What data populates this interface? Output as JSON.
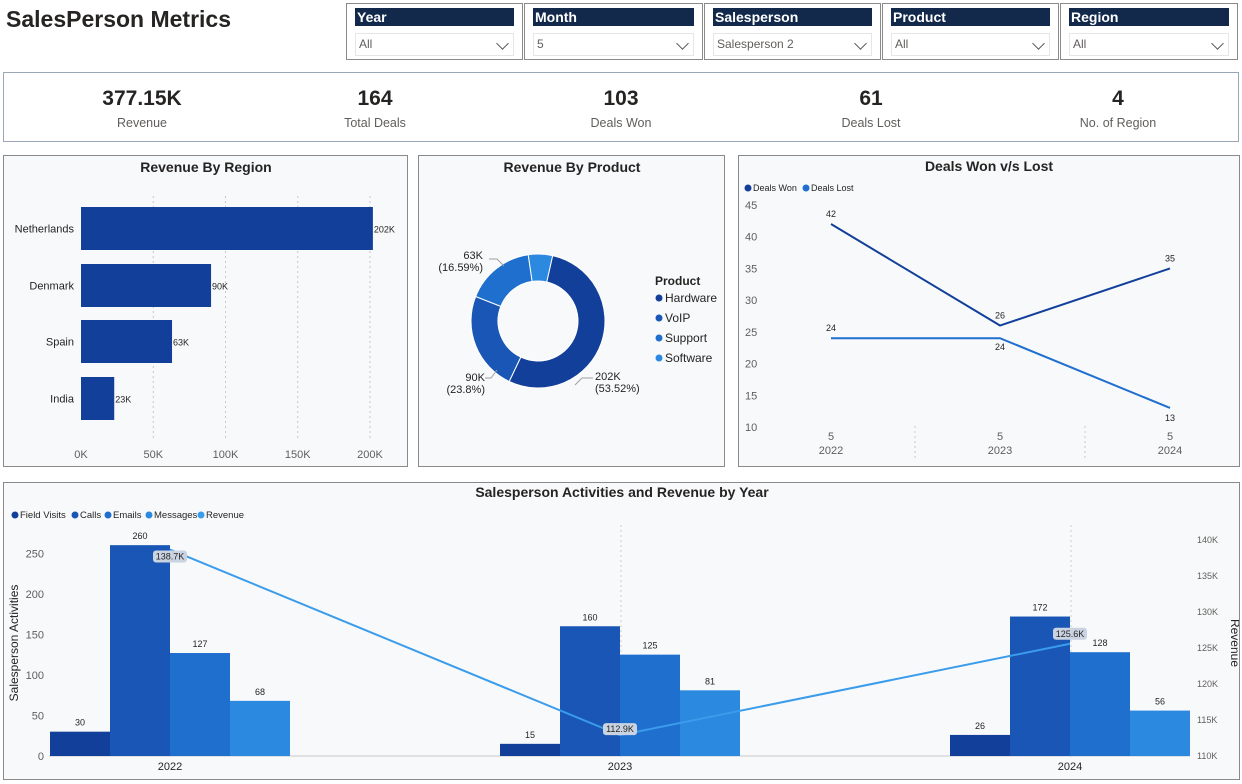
{
  "header": {
    "title": "SalesPerson Metrics"
  },
  "slicers": [
    {
      "label": "Year",
      "value": "All"
    },
    {
      "label": "Month",
      "value": "5"
    },
    {
      "label": "Salesperson",
      "value": "Salesperson 2"
    },
    {
      "label": "Product",
      "value": "All"
    },
    {
      "label": "Region",
      "value": "All"
    }
  ],
  "kpis": [
    {
      "value": "377.15K",
      "label": "Revenue"
    },
    {
      "value": "164",
      "label": "Total Deals"
    },
    {
      "value": "103",
      "label": "Deals Won"
    },
    {
      "value": "61",
      "label": "Deals Lost"
    },
    {
      "value": "4",
      "label": "No. of Region"
    }
  ],
  "colors": {
    "dark_blue": "#123f9a",
    "mid_blue": "#1a56b5",
    "blue": "#1f6fcf",
    "light_blue": "#2b89e0",
    "sky_blue": "#3a9cea",
    "slicer_header": "#13294b"
  },
  "chart_data": [
    {
      "type": "bar",
      "title": "Revenue By Region",
      "orientation": "horizontal",
      "categories": [
        "Netherlands",
        "Denmark",
        "Spain",
        "India"
      ],
      "values": [
        202,
        90,
        63,
        23
      ],
      "data_labels": [
        "202K",
        "90K",
        "63K",
        "23K"
      ],
      "xticks": [
        "0K",
        "50K",
        "100K",
        "150K",
        "200K"
      ],
      "xlim": [
        0,
        210
      ],
      "grid": true
    },
    {
      "type": "pie",
      "title": "Revenue By Product",
      "legend_title": "Product",
      "legend": [
        "Hardware",
        "VoIP",
        "Support",
        "Software"
      ],
      "values": [
        202,
        90,
        63,
        22
      ],
      "data_labels": [
        {
          "value": "202K",
          "pct": "(53.52%)"
        },
        {
          "value": "90K",
          "pct": "(23.8%)"
        },
        {
          "value": "63K",
          "pct": "(16.59%)"
        }
      ],
      "donut": true,
      "legend_position": "right"
    },
    {
      "type": "line",
      "title": "Deals Won v/s Lost",
      "x_month": [
        "5",
        "5",
        "5"
      ],
      "x_year": [
        "2022",
        "2023",
        "2024"
      ],
      "series": [
        {
          "name": "Deals Won",
          "values": [
            42,
            26,
            35
          ]
        },
        {
          "name": "Deals Lost",
          "values": [
            24,
            24,
            13
          ]
        }
      ],
      "ylim": [
        10,
        45
      ],
      "yticks": [
        10,
        15,
        20,
        25,
        30,
        35,
        40,
        45
      ],
      "legend_position": "top-left"
    },
    {
      "type": "bar",
      "title": "Salesperson Activities and Revenue by Year",
      "categories": [
        "2022",
        "2023",
        "2024"
      ],
      "series": [
        {
          "name": "Field Visits",
          "values": [
            30,
            15,
            26
          ]
        },
        {
          "name": "Calls",
          "values": [
            260,
            160,
            172
          ]
        },
        {
          "name": "Emails",
          "values": [
            127,
            125,
            128
          ]
        },
        {
          "name": "Messages",
          "values": [
            68,
            81,
            56
          ]
        }
      ],
      "line_series": {
        "name": "Revenue",
        "values": [
          138.7,
          112.9,
          125.6
        ],
        "labels": [
          "138.7K",
          "112.9K",
          "125.6K"
        ]
      },
      "ylabel": "Salesperson Activities",
      "y2label": "Revenue",
      "ylim": [
        0,
        275
      ],
      "yticks": [
        0,
        50,
        100,
        150,
        200,
        250
      ],
      "y2lim": [
        110,
        141
      ],
      "y2ticks": [
        "110K",
        "115K",
        "120K",
        "125K",
        "130K",
        "135K",
        "140K"
      ],
      "legend_position": "top-left"
    }
  ]
}
